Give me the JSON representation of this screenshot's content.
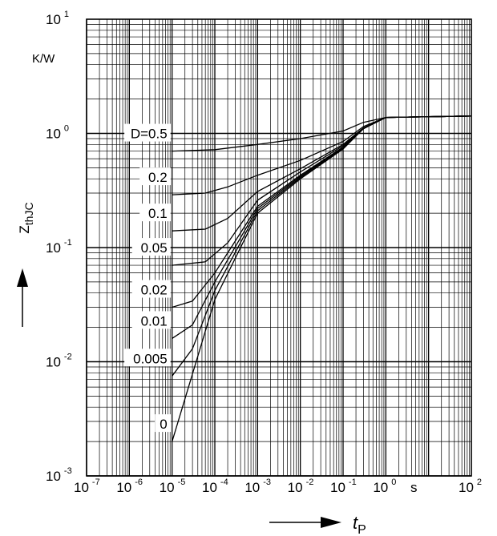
{
  "chart_data": {
    "type": "line",
    "x_scale": "log",
    "y_scale": "log",
    "xlim": [
      1e-07,
      100
    ],
    "ylim": [
      0.001,
      10
    ],
    "ylabel": {
      "main": "Z",
      "sub": "thJC"
    },
    "xlabel": {
      "main": "t",
      "sub": "P"
    },
    "y_unit": "K/W",
    "x_unit": "s",
    "grid": true,
    "legend": "none",
    "x_ticks": [
      {
        "value": 1e-07,
        "base": "10",
        "exp": "-7"
      },
      {
        "value": 1e-06,
        "base": "10",
        "exp": "-6"
      },
      {
        "value": 1e-05,
        "base": "10",
        "exp": "-5"
      },
      {
        "value": 0.0001,
        "base": "10",
        "exp": "-4"
      },
      {
        "value": 0.001,
        "base": "10",
        "exp": "-3"
      },
      {
        "value": 0.01,
        "base": "10",
        "exp": "-2"
      },
      {
        "value": 0.1,
        "base": "10",
        "exp": "-1"
      },
      {
        "value": 1,
        "base": "10",
        "exp": "0"
      },
      {
        "value": 100,
        "base": "10",
        "exp": "2"
      }
    ],
    "y_ticks": [
      {
        "value": 10,
        "base": "10",
        "exp": "1"
      },
      {
        "value": 1,
        "base": "10",
        "exp": "0"
      },
      {
        "value": 0.1,
        "base": "10",
        "exp": "-1"
      },
      {
        "value": 0.01,
        "base": "10",
        "exp": "-2"
      },
      {
        "value": 0.001,
        "base": "10",
        "exp": "-3"
      }
    ],
    "series": [
      {
        "name": "D=0.5",
        "points": [
          [
            1e-05,
            0.7
          ],
          [
            0.0001,
            0.72
          ],
          [
            0.001,
            0.8
          ],
          [
            0.01,
            0.9
          ],
          [
            0.1,
            1.05
          ],
          [
            0.3,
            1.25
          ],
          [
            1,
            1.38
          ],
          [
            10,
            1.4
          ],
          [
            100,
            1.42
          ]
        ]
      },
      {
        "name": "0.2",
        "points": [
          [
            1e-05,
            0.29
          ],
          [
            6e-05,
            0.3
          ],
          [
            0.0002,
            0.34
          ],
          [
            0.001,
            0.43
          ],
          [
            0.01,
            0.58
          ],
          [
            0.1,
            0.85
          ],
          [
            0.3,
            1.15
          ],
          [
            1,
            1.38
          ],
          [
            10,
            1.4
          ],
          [
            100,
            1.42
          ]
        ]
      },
      {
        "name": "0.1",
        "points": [
          [
            1e-05,
            0.14
          ],
          [
            6e-05,
            0.145
          ],
          [
            0.0002,
            0.18
          ],
          [
            0.001,
            0.31
          ],
          [
            0.01,
            0.49
          ],
          [
            0.1,
            0.8
          ],
          [
            0.3,
            1.12
          ],
          [
            1,
            1.38
          ],
          [
            10,
            1.4
          ],
          [
            100,
            1.42
          ]
        ]
      },
      {
        "name": "0.05",
        "points": [
          [
            1e-05,
            0.07
          ],
          [
            6e-05,
            0.075
          ],
          [
            0.0002,
            0.11
          ],
          [
            0.001,
            0.26
          ],
          [
            0.01,
            0.46
          ],
          [
            0.1,
            0.78
          ],
          [
            0.3,
            1.1
          ],
          [
            1,
            1.38
          ],
          [
            10,
            1.4
          ],
          [
            100,
            1.42
          ]
        ]
      },
      {
        "name": "0.02",
        "points": [
          [
            1e-05,
            0.03
          ],
          [
            3e-05,
            0.034
          ],
          [
            0.0001,
            0.06
          ],
          [
            0.001,
            0.23
          ],
          [
            0.01,
            0.43
          ],
          [
            0.1,
            0.76
          ],
          [
            0.3,
            1.1
          ],
          [
            1,
            1.38
          ],
          [
            10,
            1.4
          ],
          [
            100,
            1.42
          ]
        ]
      },
      {
        "name": "0.01",
        "points": [
          [
            1e-05,
            0.016
          ],
          [
            3e-05,
            0.021
          ],
          [
            0.0001,
            0.05
          ],
          [
            0.001,
            0.22
          ],
          [
            0.01,
            0.42
          ],
          [
            0.1,
            0.75
          ],
          [
            0.3,
            1.1
          ],
          [
            1,
            1.38
          ],
          [
            10,
            1.4
          ],
          [
            100,
            1.42
          ]
        ]
      },
      {
        "name": "0.005",
        "points": [
          [
            1e-05,
            0.0075
          ],
          [
            3e-05,
            0.013
          ],
          [
            0.0001,
            0.042
          ],
          [
            0.001,
            0.21
          ],
          [
            0.01,
            0.41
          ],
          [
            0.1,
            0.74
          ],
          [
            0.3,
            1.1
          ],
          [
            1,
            1.38
          ],
          [
            10,
            1.4
          ],
          [
            100,
            1.42
          ]
        ]
      },
      {
        "name": "0",
        "points": [
          [
            1e-05,
            0.002
          ],
          [
            0.0001,
            0.035
          ],
          [
            0.001,
            0.2
          ],
          [
            0.01,
            0.4
          ],
          [
            0.1,
            0.73
          ],
          [
            0.3,
            1.1
          ],
          [
            1,
            1.38
          ],
          [
            10,
            1.4
          ],
          [
            100,
            1.42
          ]
        ]
      }
    ]
  }
}
